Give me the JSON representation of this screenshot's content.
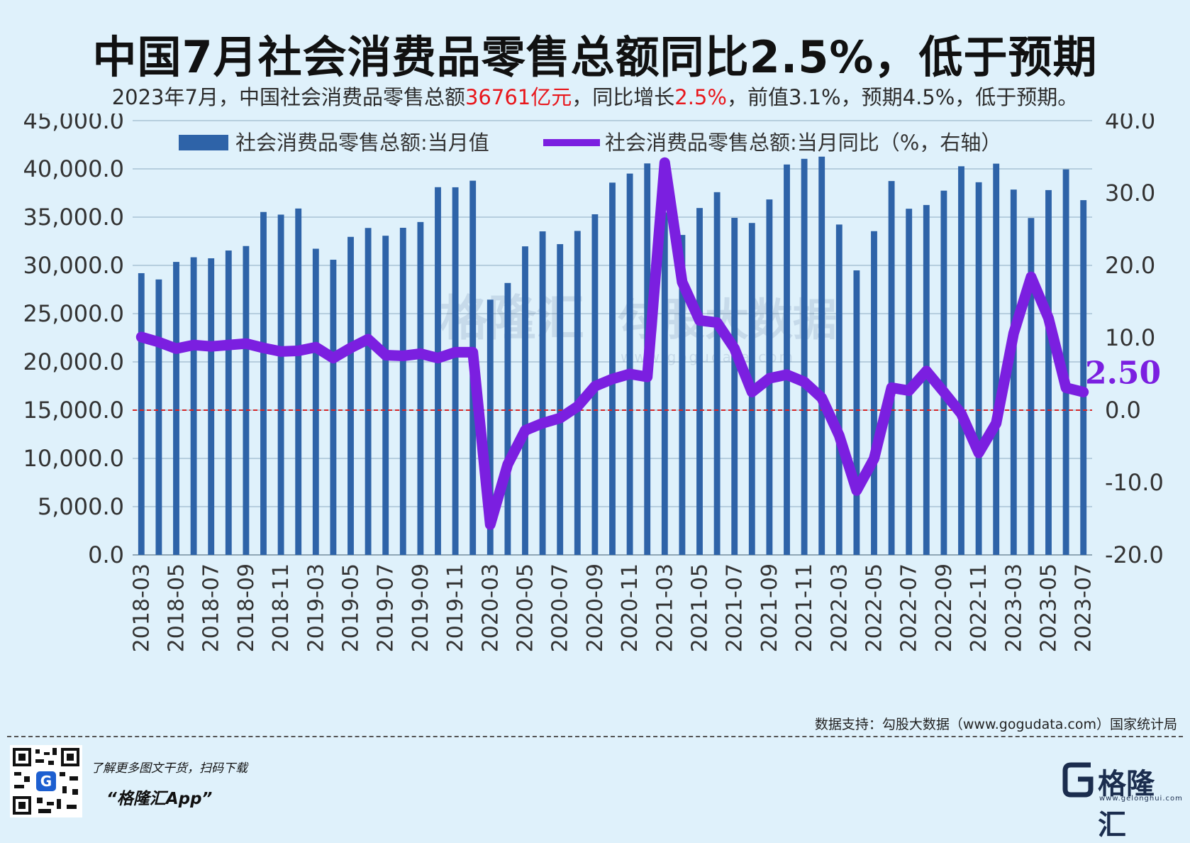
{
  "title": "中国7月社会消费品零售总额同比2.5%，低于预期",
  "subtitle": {
    "p1": "2023年7月，中国社会消费品零售总额",
    "h1": "36761亿元",
    "p2": "，同比增长",
    "h2": "2.5%",
    "p3": "，前值3.1%，预期4.5%，低于预期。"
  },
  "source": "数据支持：勾股大数据（www.gogudata.com）国家统计局",
  "promo": {
    "line1": "了解更多图文干货，扫码下载",
    "line2": "“格隆汇App”"
  },
  "logo": {
    "name": "格隆汇",
    "sub": "www.gelonghui.com"
  },
  "watermark": {
    "left": "格隆汇",
    "right": "勾股大数据",
    "url": "www.gogudata.com"
  },
  "colors": {
    "bar": "#2e63a8",
    "line": "#7b1fe0",
    "zero_line": "#d62728",
    "grid": "#a9c2d4"
  },
  "chart_data": {
    "type": "bar+line",
    "categories": [
      "2018-03",
      "2018-04",
      "2018-05",
      "2018-06",
      "2018-07",
      "2018-08",
      "2018-09",
      "2018-10",
      "2018-11",
      "2018-12",
      "2019-03",
      "2019-04",
      "2019-05",
      "2019-06",
      "2019-07",
      "2019-08",
      "2019-09",
      "2019-10",
      "2019-11",
      "2019-12",
      "2020-03",
      "2020-04",
      "2020-05",
      "2020-06",
      "2020-07",
      "2020-08",
      "2020-09",
      "2020-10",
      "2020-11",
      "2020-12",
      "2021-03",
      "2021-04",
      "2021-05",
      "2021-06",
      "2021-07",
      "2021-08",
      "2021-09",
      "2021-10",
      "2021-11",
      "2021-12",
      "2022-03",
      "2022-04",
      "2022-05",
      "2022-06",
      "2022-07",
      "2022-08",
      "2022-09",
      "2022-10",
      "2022-11",
      "2022-12",
      "2023-03",
      "2023-04",
      "2023-05",
      "2023-06",
      "2023-07"
    ],
    "tick_labels": [
      "2018-03",
      "2018-05",
      "2018-07",
      "2018-09",
      "2018-11",
      "2019-03",
      "2019-05",
      "2019-07",
      "2019-09",
      "2019-11",
      "2020-03",
      "2020-05",
      "2020-07",
      "2020-09",
      "2020-11",
      "2021-03",
      "2021-05",
      "2021-07",
      "2021-09",
      "2021-11",
      "2022-03",
      "2022-05",
      "2022-07",
      "2022-09",
      "2022-11",
      "2023-03",
      "2023-05",
      "2023-07"
    ],
    "series": [
      {
        "name": "社会消费品零售总额:当月值",
        "type": "bar",
        "axis": "left",
        "values": [
          29194,
          28542,
          30359,
          30842,
          30734,
          31542,
          32005,
          35534,
          35260,
          35893,
          31726,
          30586,
          32956,
          33878,
          33073,
          33896,
          34495,
          38104,
          38094,
          38777,
          26450,
          28178,
          31973,
          33526,
          32203,
          33571,
          35295,
          38576,
          39514,
          40566,
          35484,
          33153,
          35945,
          37586,
          34925,
          34395,
          36833,
          40454,
          41043,
          41269,
          34233,
          29483,
          33547,
          38742,
          35870,
          36258,
          37745,
          40271,
          38615,
          40543,
          37855,
          34910,
          37803,
          39951,
          36761
        ]
      },
      {
        "name": "社会消费品零售总额:当月同比（%，右轴）",
        "type": "line",
        "axis": "right",
        "values": [
          10.1,
          9.4,
          8.5,
          9.0,
          8.8,
          9.0,
          9.2,
          8.6,
          8.1,
          8.2,
          8.7,
          7.2,
          8.6,
          9.8,
          7.6,
          7.5,
          7.8,
          7.2,
          8.0,
          8.0,
          -15.8,
          -7.5,
          -2.8,
          -1.8,
          -1.1,
          0.5,
          3.3,
          4.3,
          5.0,
          4.6,
          34.2,
          17.7,
          12.4,
          12.1,
          8.5,
          2.5,
          4.4,
          4.9,
          3.9,
          1.7,
          -3.5,
          -11.1,
          -6.7,
          3.1,
          2.7,
          5.4,
          2.5,
          -0.5,
          -5.9,
          -1.8,
          10.6,
          18.4,
          12.7,
          3.1,
          2.5
        ]
      }
    ],
    "y_left": {
      "min": 0,
      "max": 45000,
      "step": 5000
    },
    "y_right": {
      "min": -20,
      "max": 40,
      "step": 10
    },
    "end_label": "2.50",
    "legend_position": "top",
    "grid": true
  }
}
